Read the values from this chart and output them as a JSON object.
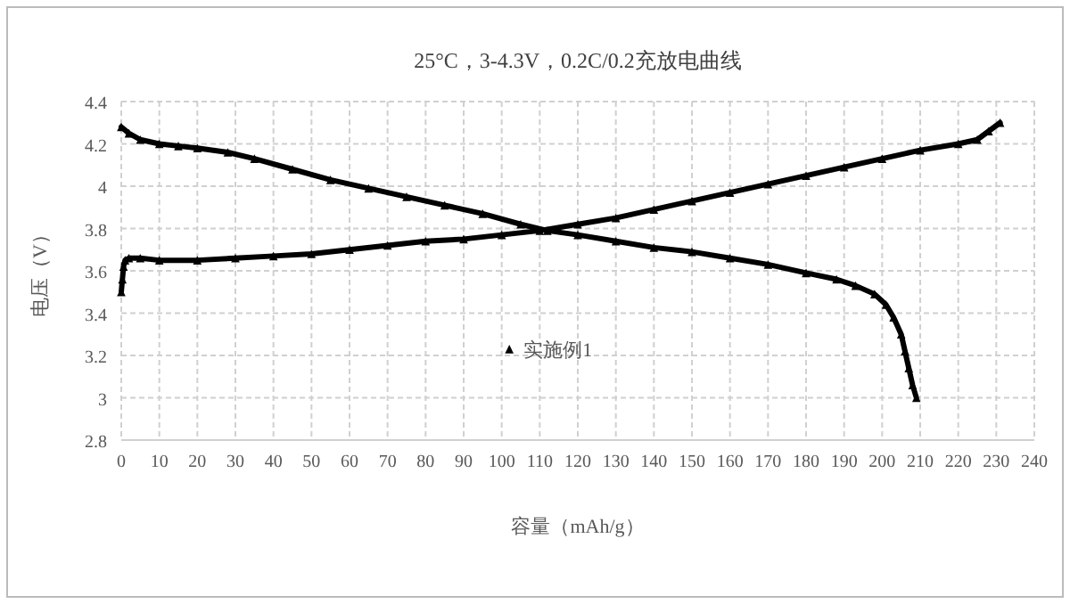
{
  "chart_data": {
    "type": "line",
    "title": "25°C，3-4.3V，0.2C/0.2充放电曲线",
    "xlabel": "容量（mAh/g）",
    "ylabel": "电压（V）",
    "xlim": [
      0,
      240
    ],
    "xticks": [
      0,
      10,
      20,
      30,
      40,
      50,
      60,
      70,
      80,
      90,
      100,
      110,
      120,
      130,
      140,
      150,
      160,
      170,
      180,
      190,
      200,
      210,
      220,
      230,
      240
    ],
    "ylim": [
      2.8,
      4.4
    ],
    "yticks": [
      2.8,
      3,
      3.2,
      3.4,
      3.6,
      3.8,
      4,
      4.2,
      4.4
    ],
    "grid": true,
    "legend": "center",
    "marker": "triangle",
    "series": [
      {
        "name": "实施例1",
        "color": "#000000",
        "x": [
          0,
          0.3,
          0.6,
          1,
          2,
          5,
          10,
          20,
          30,
          40,
          50,
          60,
          70,
          80,
          90,
          100,
          110,
          120,
          130,
          140,
          150,
          160,
          170,
          180,
          190,
          200,
          210,
          220,
          225,
          228,
          231
        ],
        "values": [
          3.5,
          3.56,
          3.62,
          3.65,
          3.66,
          3.66,
          3.65,
          3.65,
          3.66,
          3.67,
          3.68,
          3.7,
          3.72,
          3.74,
          3.75,
          3.77,
          3.79,
          3.82,
          3.85,
          3.89,
          3.93,
          3.97,
          4.01,
          4.05,
          4.09,
          4.13,
          4.17,
          4.2,
          4.22,
          4.26,
          4.3
        ]
      },
      {
        "color": "#000000",
        "x": [
          0,
          2,
          5,
          10,
          15,
          20,
          28,
          35,
          45,
          55,
          65,
          75,
          85,
          95,
          105,
          112,
          120,
          130,
          140,
          150,
          160,
          170,
          180,
          188,
          193,
          198,
          201,
          203,
          205,
          206,
          207,
          208,
          209
        ],
        "values": [
          4.28,
          4.25,
          4.22,
          4.2,
          4.19,
          4.18,
          4.16,
          4.13,
          4.08,
          4.03,
          3.99,
          3.95,
          3.91,
          3.87,
          3.82,
          3.79,
          3.77,
          3.74,
          3.71,
          3.69,
          3.66,
          3.63,
          3.59,
          3.56,
          3.53,
          3.49,
          3.44,
          3.38,
          3.3,
          3.22,
          3.14,
          3.06,
          3.0
        ]
      }
    ]
  }
}
